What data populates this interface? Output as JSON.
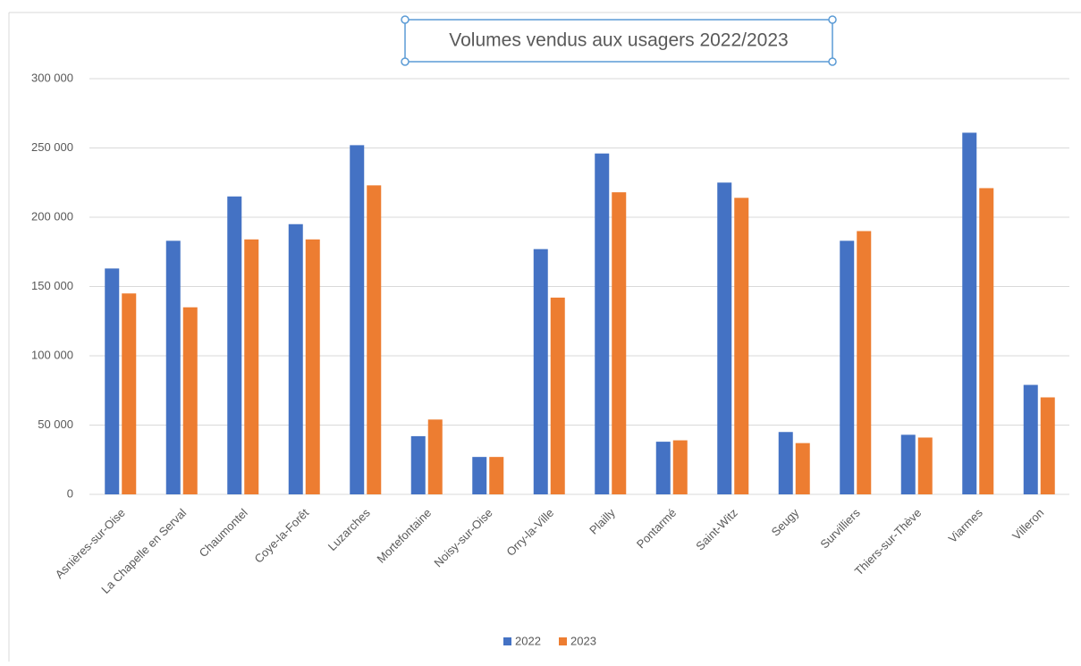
{
  "chart_data": {
    "type": "bar",
    "title": "Volumes vendus aux usagers 2022/2023",
    "categories": [
      "Asnières-sur-Oise",
      "La Chapelle en Serval",
      "Chaumontel",
      "Coye-la-Forêt",
      "Luzarches",
      "Mortefontaine",
      "Noisy-sur-Oise",
      "Orry-la-Ville",
      "Plailly",
      "Pontarmé",
      "Saint-Witz",
      "Seugy",
      "Survilliers",
      "Thiers-sur-Thève",
      "Viarmes",
      "Villeron"
    ],
    "series": [
      {
        "name": "2022",
        "color": "#4472c4",
        "values": [
          163000,
          183000,
          215000,
          195000,
          252000,
          42000,
          27000,
          177000,
          246000,
          38000,
          225000,
          45000,
          183000,
          43000,
          261000,
          79000
        ]
      },
      {
        "name": "2023",
        "color": "#ed7d31",
        "values": [
          145000,
          135000,
          184000,
          184000,
          223000,
          54000,
          27000,
          142000,
          218000,
          39000,
          214000,
          37000,
          190000,
          41000,
          221000,
          70000
        ]
      }
    ],
    "ylim": [
      0,
      300000
    ],
    "yticks": [
      0,
      {
        "value": 50000,
        "label": "50 000"
      },
      {
        "value": 100000,
        "label": "100 000"
      },
      {
        "value": 150000,
        "label": "150 000"
      },
      {
        "value": 200000,
        "label": "200 000"
      },
      {
        "value": 250000,
        "label": "250 000"
      },
      {
        "value": 300000,
        "label": "300 000"
      }
    ],
    "grid": true,
    "legend": "bottom"
  }
}
